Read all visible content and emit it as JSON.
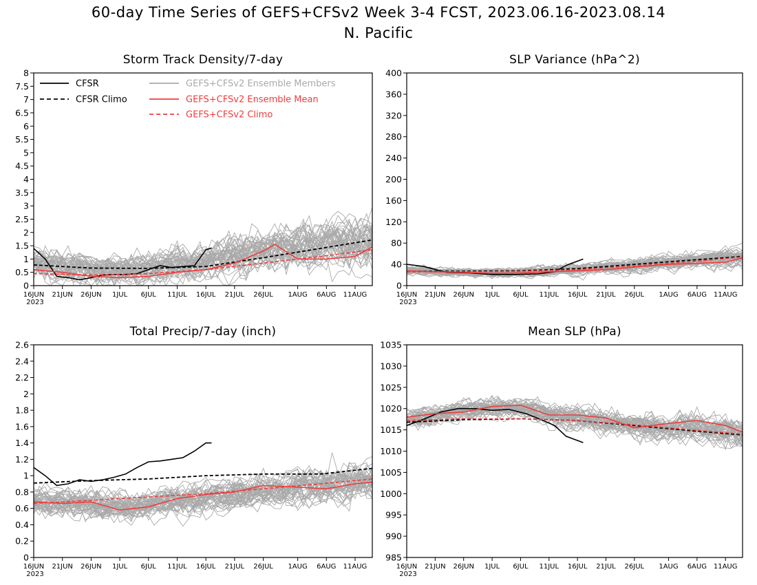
{
  "header": {
    "title": "60-day Time Series of GEFS+CFSv2 Week 3-4 FCST, 2023.06.16-2023.08.14",
    "region": "N. Pacific"
  },
  "colors": {
    "cfsr": "#000000",
    "members": "#a9a9a9",
    "ensemble_mean": "#f03c3c",
    "gefs_climo": "#f03c3c",
    "cfsr_climo": "#000000"
  },
  "x_axis": {
    "start": "2023-06-16",
    "end": "2023-08-14",
    "tick_labels": [
      "16JUN",
      "21JUN",
      "26JUN",
      "1JUL",
      "6JUL",
      "11JUL",
      "16JUL",
      "21JUL",
      "26JUL",
      "1AUG",
      "6AUG",
      "11AUG"
    ],
    "tick_days": [
      0,
      5,
      10,
      15,
      20,
      25,
      30,
      35,
      40,
      46,
      51,
      56
    ],
    "year_label": "2023"
  },
  "legend": {
    "cfsr": "CFSR",
    "cfsr_climo": "CFSR Climo",
    "members": "GEFS+CFSv2 Ensemble Members",
    "ensemble_mean": "GEFS+CFSv2 Ensemble Mean",
    "gefs_climo": "GEFS+CFSv2 Climo"
  },
  "chart_data": [
    {
      "type": "line",
      "title": "Storm Track Density/7-day",
      "ylim": [
        0,
        8
      ],
      "yticks": [
        "0",
        "0.5",
        "1",
        "1.5",
        "2",
        "2.5",
        "3",
        "3.5",
        "4",
        "4.5",
        "5",
        "5.5",
        "6",
        "6.5",
        "7",
        "7.5",
        "8"
      ],
      "series": [
        {
          "name": "CFSR",
          "style": "solid-black",
          "x": [
            "2023-06-16",
            "2023-06-18",
            "2023-06-20",
            "2023-06-22",
            "2023-06-24",
            "2023-06-26",
            "2023-06-28",
            "2023-06-30",
            "2023-07-02",
            "2023-07-04",
            "2023-07-06",
            "2023-07-08",
            "2023-07-10",
            "2023-07-12",
            "2023-07-14",
            "2023-07-16",
            "2023-07-17"
          ],
          "values": [
            1.4,
            1.0,
            0.35,
            0.3,
            0.22,
            0.3,
            0.4,
            0.42,
            0.42,
            0.45,
            0.6,
            0.75,
            0.68,
            0.72,
            0.75,
            1.35,
            1.42
          ]
        },
        {
          "name": "CFSR Climo",
          "style": "dashed-black",
          "x": [
            "2023-06-16",
            "2023-06-26",
            "2023-07-06",
            "2023-07-16",
            "2023-07-26",
            "2023-08-05",
            "2023-08-14"
          ],
          "values": [
            0.78,
            0.66,
            0.65,
            0.72,
            1.05,
            1.4,
            1.72
          ]
        },
        {
          "name": "GEFS+CFSv2 Ensemble Mean",
          "style": "solid-red",
          "x": [
            "2023-06-16",
            "2023-06-21",
            "2023-06-26",
            "2023-07-01",
            "2023-07-06",
            "2023-07-11",
            "2023-07-16",
            "2023-07-21",
            "2023-07-26",
            "2023-07-28",
            "2023-08-01",
            "2023-08-06",
            "2023-08-11",
            "2023-08-14"
          ],
          "values": [
            0.6,
            0.5,
            0.35,
            0.3,
            0.35,
            0.5,
            0.6,
            0.85,
            1.3,
            1.55,
            1.0,
            1.0,
            1.1,
            1.45
          ]
        },
        {
          "name": "GEFS+CFSv2 Climo",
          "style": "dashed-red",
          "x": [
            "2023-06-16",
            "2023-06-26",
            "2023-07-06",
            "2023-07-16",
            "2023-07-26",
            "2023-08-05",
            "2023-08-14"
          ],
          "values": [
            0.45,
            0.4,
            0.45,
            0.6,
            0.85,
            1.1,
            1.35
          ]
        }
      ],
      "members": {
        "center": [
          0.8,
          0.72,
          0.62,
          0.58,
          0.6,
          0.72,
          0.9,
          1.1,
          1.3,
          1.45,
          1.5,
          1.6,
          1.75
        ],
        "spread": [
          1.0,
          1.0,
          1.0,
          1.0,
          1.0,
          1.1,
          1.2,
          1.3,
          1.4,
          1.5,
          1.6,
          1.7,
          1.8
        ],
        "ylim": [
          0,
          4.3
        ]
      }
    },
    {
      "type": "line",
      "title": "SLP Variance (hPa^2)",
      "ylim": [
        0,
        400
      ],
      "yticks": [
        "0",
        "40",
        "80",
        "120",
        "160",
        "200",
        "240",
        "280",
        "320",
        "360",
        "400"
      ],
      "series": [
        {
          "name": "CFSR",
          "style": "solid-black",
          "x": [
            "2023-06-16",
            "2023-06-19",
            "2023-06-23",
            "2023-06-27",
            "2023-07-01",
            "2023-07-05",
            "2023-07-09",
            "2023-07-12",
            "2023-07-14",
            "2023-07-17"
          ],
          "values": [
            40,
            36,
            25,
            24,
            21,
            21,
            22,
            26,
            38,
            50
          ]
        },
        {
          "name": "CFSR Climo",
          "style": "dashed-black",
          "x": [
            "2023-06-16",
            "2023-06-26",
            "2023-07-06",
            "2023-07-16",
            "2023-07-26",
            "2023-08-05",
            "2023-08-14"
          ],
          "values": [
            27,
            27,
            28,
            32,
            40,
            48,
            55
          ]
        },
        {
          "name": "GEFS+CFSv2 Ensemble Mean",
          "style": "solid-red",
          "x": [
            "2023-06-16",
            "2023-06-21",
            "2023-06-26",
            "2023-07-01",
            "2023-07-06",
            "2023-07-11",
            "2023-07-16",
            "2023-07-21",
            "2023-07-26",
            "2023-08-01",
            "2023-08-06",
            "2023-08-11",
            "2023-08-14"
          ],
          "values": [
            28,
            26,
            25,
            23,
            24,
            26,
            28,
            30,
            35,
            40,
            42,
            44,
            52
          ]
        },
        {
          "name": "GEFS+CFSv2 Climo",
          "style": "dashed-red",
          "x": [
            "2023-06-16",
            "2023-06-26",
            "2023-07-06",
            "2023-07-16",
            "2023-07-26",
            "2023-08-05",
            "2023-08-14"
          ],
          "values": [
            26,
            26,
            27,
            30,
            37,
            45,
            54
          ]
        }
      ],
      "members": {
        "center": [
          28,
          26,
          25,
          24,
          25,
          27,
          30,
          34,
          38,
          42,
          46,
          50,
          55
        ],
        "spread": [
          14,
          14,
          14,
          14,
          16,
          18,
          20,
          22,
          24,
          26,
          28,
          32,
          36
        ],
        "ylim": [
          5,
          130
        ]
      }
    },
    {
      "type": "line",
      "title": "Total Precip/7-day (inch)",
      "ylim": [
        0,
        2.6
      ],
      "yticks": [
        "0",
        "0.2",
        "0.4",
        "0.6",
        "0.8",
        "1",
        "1.2",
        "1.4",
        "1.6",
        "1.8",
        "2",
        "2.2",
        "2.4",
        "2.6"
      ],
      "series": [
        {
          "name": "CFSR",
          "style": "solid-black",
          "x": [
            "2023-06-16",
            "2023-06-18",
            "2023-06-20",
            "2023-06-22",
            "2023-06-24",
            "2023-06-26",
            "2023-06-28",
            "2023-06-30",
            "2023-07-02",
            "2023-07-04",
            "2023-07-06",
            "2023-07-08",
            "2023-07-10",
            "2023-07-12",
            "2023-07-14",
            "2023-07-16",
            "2023-07-17"
          ],
          "values": [
            1.1,
            1.0,
            0.88,
            0.9,
            0.95,
            0.93,
            0.95,
            0.98,
            1.02,
            1.1,
            1.17,
            1.18,
            1.2,
            1.22,
            1.3,
            1.4,
            1.4
          ]
        },
        {
          "name": "CFSR Climo",
          "style": "dashed-black",
          "x": [
            "2023-06-16",
            "2023-06-26",
            "2023-07-06",
            "2023-07-16",
            "2023-07-26",
            "2023-08-05",
            "2023-08-14"
          ],
          "values": [
            0.91,
            0.94,
            0.96,
            1.0,
            1.02,
            1.02,
            1.09
          ]
        },
        {
          "name": "GEFS+CFSv2 Ensemble Mean",
          "style": "solid-red",
          "x": [
            "2023-06-16",
            "2023-06-21",
            "2023-06-26",
            "2023-07-01",
            "2023-07-06",
            "2023-07-11",
            "2023-07-16",
            "2023-07-21",
            "2023-07-26",
            "2023-08-01",
            "2023-08-06",
            "2023-08-11",
            "2023-08-14"
          ],
          "values": [
            0.68,
            0.66,
            0.68,
            0.58,
            0.62,
            0.72,
            0.77,
            0.8,
            0.88,
            0.86,
            0.84,
            0.9,
            0.92
          ]
        },
        {
          "name": "GEFS+CFSv2 Climo",
          "style": "dashed-red",
          "x": [
            "2023-06-16",
            "2023-06-26",
            "2023-07-06",
            "2023-07-16",
            "2023-07-26",
            "2023-08-05",
            "2023-08-14"
          ],
          "values": [
            0.66,
            0.7,
            0.74,
            0.78,
            0.84,
            0.9,
            0.96
          ]
        }
      ],
      "members": {
        "center": [
          0.68,
          0.67,
          0.65,
          0.63,
          0.64,
          0.68,
          0.72,
          0.76,
          0.8,
          0.84,
          0.87,
          0.9,
          0.93
        ],
        "spread": [
          0.32,
          0.32,
          0.32,
          0.32,
          0.32,
          0.32,
          0.34,
          0.34,
          0.36,
          0.36,
          0.38,
          0.38,
          0.4
        ],
        "ylim": [
          0.25,
          1.35
        ]
      }
    },
    {
      "type": "line",
      "title": "Mean SLP (hPa)",
      "ylim": [
        985,
        1035
      ],
      "yticks": [
        "985",
        "990",
        "995",
        "1000",
        "1005",
        "1010",
        "1015",
        "1020",
        "1025",
        "1030",
        "1035"
      ],
      "series": [
        {
          "name": "CFSR",
          "style": "solid-black",
          "x": [
            "2023-06-16",
            "2023-06-19",
            "2023-06-22",
            "2023-06-25",
            "2023-06-28",
            "2023-07-01",
            "2023-07-04",
            "2023-07-07",
            "2023-07-10",
            "2023-07-12",
            "2023-07-14",
            "2023-07-17"
          ],
          "values": [
            1016,
            1017.5,
            1019.2,
            1020,
            1020,
            1019.6,
            1019.8,
            1018.8,
            1017.2,
            1016,
            1013.5,
            1012
          ]
        },
        {
          "name": "CFSR Climo",
          "style": "dashed-black",
          "x": [
            "2023-06-16",
            "2023-06-26",
            "2023-07-06",
            "2023-07-16",
            "2023-07-26",
            "2023-08-05",
            "2023-08-14"
          ],
          "values": [
            1016.8,
            1017.4,
            1017.6,
            1017.2,
            1016.0,
            1014.8,
            1013.8
          ]
        },
        {
          "name": "GEFS+CFSv2 Ensemble Mean",
          "style": "solid-red",
          "x": [
            "2023-06-16",
            "2023-06-21",
            "2023-06-26",
            "2023-07-01",
            "2023-07-06",
            "2023-07-11",
            "2023-07-16",
            "2023-07-21",
            "2023-07-26",
            "2023-08-01",
            "2023-08-06",
            "2023-08-11",
            "2023-08-14"
          ],
          "values": [
            1018,
            1018.8,
            1019.2,
            1020.5,
            1020.8,
            1018.5,
            1018.5,
            1017.8,
            1015.5,
            1016.5,
            1017.2,
            1016,
            1014.5
          ]
        },
        {
          "name": "GEFS+CFSv2 Climo",
          "style": "dashed-red",
          "x": [
            "2023-06-16",
            "2023-06-26",
            "2023-07-06",
            "2023-07-16",
            "2023-07-26",
            "2023-08-05",
            "2023-08-14"
          ],
          "values": [
            1017.2,
            1017.6,
            1017.6,
            1017.2,
            1016.2,
            1015.0,
            1014.0
          ]
        }
      ],
      "members": {
        "center": [
          1017.5,
          1018.5,
          1019.5,
          1020,
          1020,
          1019,
          1018,
          1017,
          1016,
          1015.5,
          1015.5,
          1015,
          1014
        ],
        "spread": [
          4,
          4,
          4,
          4.5,
          4.5,
          4.5,
          5,
          5,
          5.5,
          5.5,
          5.5,
          6,
          6
        ],
        "ylim": [
          1002,
          1030
        ]
      }
    }
  ]
}
